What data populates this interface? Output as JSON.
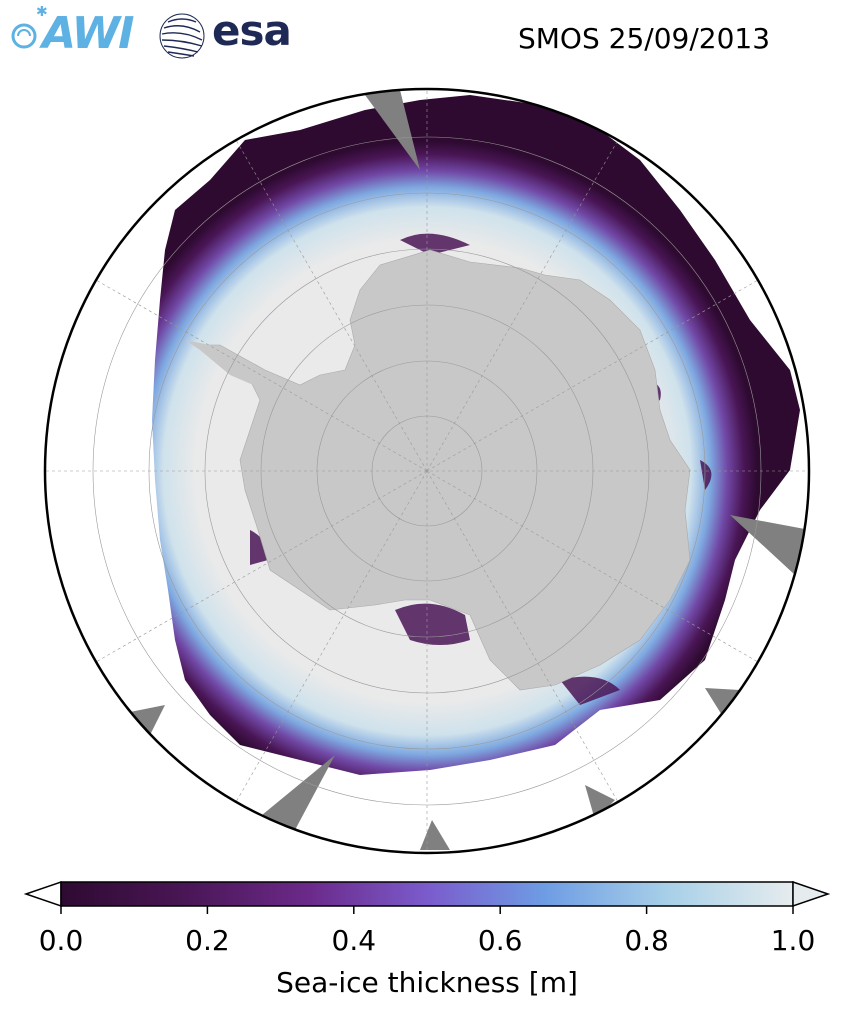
{
  "header": {
    "title": "SMOS 25/09/2013",
    "logos": [
      {
        "name": "AWI",
        "color": "#5eb1e3"
      },
      {
        "name": "esa",
        "color": "#1e2a55"
      }
    ]
  },
  "map": {
    "projection": "south-polar-stereographic",
    "land_color": "#c8c8c8",
    "ice_background_color": "#eaeaea",
    "ocean_color": "#ffffff",
    "missing_data_color": "#808080",
    "graticule_color": "#999999"
  },
  "colorbar": {
    "label": "Sea-ice thickness [m]",
    "min": 0.0,
    "max": 1.0,
    "extend": "both",
    "ticks": [
      "0.0",
      "0.2",
      "0.4",
      "0.6",
      "0.8",
      "1.0"
    ],
    "colors": [
      "#2e0a31",
      "#4a1656",
      "#6b2a8a",
      "#7b5bcc",
      "#6e9ce4",
      "#a8d0e8",
      "#e6ecee"
    ]
  }
}
